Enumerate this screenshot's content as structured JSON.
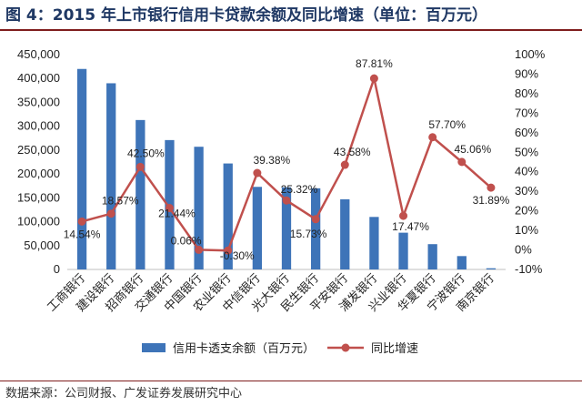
{
  "title": "图 4：2015 年上市银行信用卡贷款余额及同比增速（单位：百万元）",
  "source": "数据来源：公司财报、广发证券发展研究中心",
  "chart_data": {
    "type": "bar+line",
    "categories": [
      "工商银行",
      "建设银行",
      "招商银行",
      "交通银行",
      "中国银行",
      "农业银行",
      "中信银行",
      "光大银行",
      "民生银行",
      "平安银行",
      "浦发银行",
      "兴业银行",
      "华夏银行",
      "宁波银行",
      "南京银行"
    ],
    "series": [
      {
        "name": "信用卡透支余额（百万元）",
        "type": "bar",
        "axis": "left",
        "color": "#3e74b8",
        "values": [
          420000,
          390000,
          313000,
          271000,
          257000,
          222000,
          173000,
          172000,
          170000,
          147000,
          110000,
          77000,
          53000,
          28000,
          2500
        ]
      },
      {
        "name": "同比增速",
        "type": "line",
        "axis": "right",
        "color": "#c0504d",
        "values": [
          14.54,
          18.57,
          42.5,
          21.44,
          0.06,
          -0.3,
          39.38,
          25.32,
          15.73,
          43.58,
          87.81,
          17.47,
          57.7,
          45.06,
          31.89
        ],
        "labels": [
          "14.54%",
          "18.57%",
          "42.50%",
          "21.44%",
          "0.06%",
          "-0.30%",
          "39.38%",
          "25.32%",
          "15.73%",
          "43.58%",
          "87.81%",
          "17.47%",
          "57.70%",
          "45.06%",
          "31.89%"
        ]
      }
    ],
    "y_left": {
      "min": 0,
      "max": 450000,
      "step": 50000,
      "ticks": [
        "0",
        "50,000",
        "100,000",
        "150,000",
        "200,000",
        "250,000",
        "300,000",
        "350,000",
        "400,000",
        "450,000"
      ]
    },
    "y_right": {
      "min": -10,
      "max": 100,
      "step": 10,
      "ticks": [
        "-10%",
        "0%",
        "10%",
        "20%",
        "30%",
        "40%",
        "50%",
        "60%",
        "70%",
        "80%",
        "90%",
        "100%"
      ]
    },
    "legend_position": "bottom",
    "grid": false
  }
}
